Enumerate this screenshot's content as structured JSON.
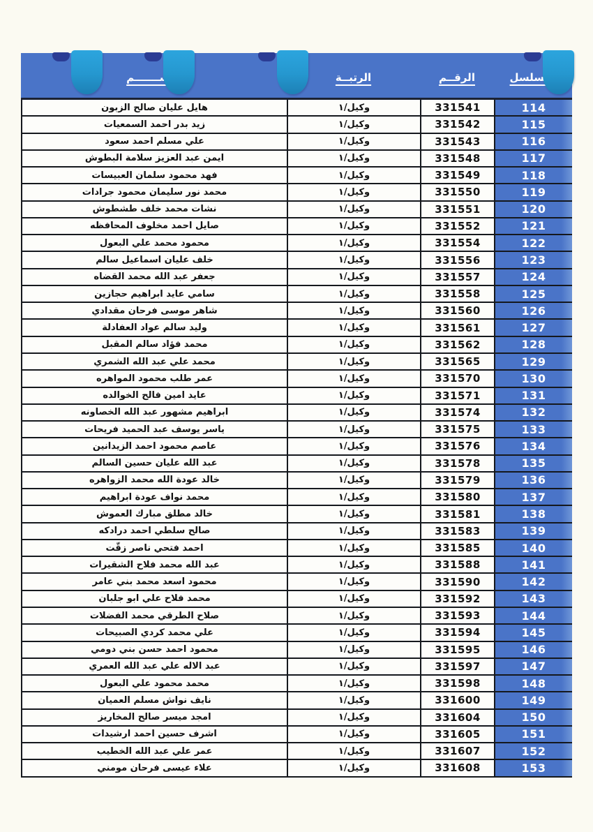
{
  "document": {
    "type": "roster-table",
    "header": {
      "serial_label": "التسلسل",
      "number_label": "الرقــم",
      "rank_label": "الرتبــة",
      "name_label": "الاســـــــم"
    },
    "rows": [
      {
        "serial": "114",
        "number": "331541",
        "rank": "وكيل/١",
        "name": "هايل عليان صالح الزبون"
      },
      {
        "serial": "115",
        "number": "331542",
        "rank": "وكيل/١",
        "name": "زيد بدر احمد السمعيات"
      },
      {
        "serial": "116",
        "number": "331543",
        "rank": "وكيل/١",
        "name": "علي مسلم احمد سعود"
      },
      {
        "serial": "117",
        "number": "331548",
        "rank": "وكيل/١",
        "name": "ايمن عبد العزيز سلامة البطوش"
      },
      {
        "serial": "118",
        "number": "331549",
        "rank": "وكيل/١",
        "name": "فهد محمود سلمان العبيسات"
      },
      {
        "serial": "119",
        "number": "331550",
        "rank": "وكيل/١",
        "name": "محمد نور سليمان محمود جرادات"
      },
      {
        "serial": "120",
        "number": "331551",
        "rank": "وكيل/١",
        "name": "نشات محمد خلف طشطوش"
      },
      {
        "serial": "121",
        "number": "331552",
        "rank": "وكيل/١",
        "name": "صايل احمد مخلوف المحافظه"
      },
      {
        "serial": "122",
        "number": "331554",
        "rank": "وكيل/١",
        "name": "محمود محمد علي البعول"
      },
      {
        "serial": "123",
        "number": "331556",
        "rank": "وكيل/١",
        "name": "خلف عليان اسماعيل سالم"
      },
      {
        "serial": "124",
        "number": "331557",
        "rank": "وكيل/١",
        "name": "جعفر عبد الله محمد القضاه"
      },
      {
        "serial": "125",
        "number": "331558",
        "rank": "وكيل/١",
        "name": "سامي عايد ابراهيم حجازين"
      },
      {
        "serial": "126",
        "number": "331560",
        "rank": "وكيل/١",
        "name": "شاهر موسى فرحان مقدادي"
      },
      {
        "serial": "127",
        "number": "331561",
        "rank": "وكيل/١",
        "name": "وليد سالم عواد العفادلة"
      },
      {
        "serial": "128",
        "number": "331562",
        "rank": "وكيل/١",
        "name": "محمد فؤاد سالم المقبل"
      },
      {
        "serial": "129",
        "number": "331565",
        "rank": "وكيل/١",
        "name": "محمد علي عبد الله الشمري"
      },
      {
        "serial": "130",
        "number": "331570",
        "rank": "وكيل/١",
        "name": "عمر طلب محمود المواهره"
      },
      {
        "serial": "131",
        "number": "331571",
        "rank": "وكيل/١",
        "name": "عايد امين فالح الخوالده"
      },
      {
        "serial": "132",
        "number": "331574",
        "rank": "وكيل/١",
        "name": "ابراهيم مشهور عبد الله الخصاونه"
      },
      {
        "serial": "133",
        "number": "331575",
        "rank": "وكيل/١",
        "name": "ياسر يوسف عبد الحميد فريحات"
      },
      {
        "serial": "134",
        "number": "331576",
        "rank": "وكيل/١",
        "name": "عاصم محمود احمد الزيدانين"
      },
      {
        "serial": "135",
        "number": "331578",
        "rank": "وكيل/١",
        "name": "عبد الله عليان حسين السالم"
      },
      {
        "serial": "136",
        "number": "331579",
        "rank": "وكيل/١",
        "name": "خالد عودة الله محمد الزواهره"
      },
      {
        "serial": "137",
        "number": "331580",
        "rank": "وكيل/١",
        "name": "محمد نواف عودة ابراهيم"
      },
      {
        "serial": "138",
        "number": "331581",
        "rank": "وكيل/١",
        "name": "خالد مطلق مبارك العموش"
      },
      {
        "serial": "139",
        "number": "331583",
        "rank": "وكيل/١",
        "name": "صالح سلطي احمد درادكه"
      },
      {
        "serial": "140",
        "number": "331585",
        "rank": "وكيل/١",
        "name": "احمد فتحي ناصر زقّت"
      },
      {
        "serial": "141",
        "number": "331588",
        "rank": "وكيل/١",
        "name": "عبد الله محمد فلاح الشقيرات"
      },
      {
        "serial": "142",
        "number": "331590",
        "rank": "وكيل/١",
        "name": "محمود اسعد محمد بني عامر"
      },
      {
        "serial": "143",
        "number": "331592",
        "rank": "وكيل/١",
        "name": "محمد فلاح علي ابو جلبان"
      },
      {
        "serial": "144",
        "number": "331593",
        "rank": "وكيل/١",
        "name": "صلاح الطرقي محمد الفضلات"
      },
      {
        "serial": "145",
        "number": "331594",
        "rank": "وكيل/١",
        "name": "علي محمد كردي الصبيحات"
      },
      {
        "serial": "146",
        "number": "331595",
        "rank": "وكيل/١",
        "name": "محمود احمد حسن بني دومي"
      },
      {
        "serial": "147",
        "number": "331597",
        "rank": "وكيل/١",
        "name": "عبد الاله علي عبد الله العمري"
      },
      {
        "serial": "148",
        "number": "331598",
        "rank": "وكيل/١",
        "name": "محمد محمود علي البعول"
      },
      {
        "serial": "149",
        "number": "331600",
        "rank": "وكيل/١",
        "name": "نايف نواش مسلم العميان"
      },
      {
        "serial": "150",
        "number": "331604",
        "rank": "وكيل/١",
        "name": "امجد ميسر صالح المخاريز"
      },
      {
        "serial": "151",
        "number": "331605",
        "rank": "وكيل/١",
        "name": "اشرف حسين احمد ارشيدات"
      },
      {
        "serial": "152",
        "number": "331607",
        "rank": "وكيل/١",
        "name": "عمر علي عبد الله الخطيب"
      },
      {
        "serial": "153",
        "number": "331608",
        "rank": "وكيل/١",
        "name": "علاء عيسى فرحان مومني"
      }
    ],
    "colors": {
      "header_blue": "#4a74c8",
      "serial_cell_blue": "#4a74c8",
      "tab_blue_top": "#2ca5de",
      "tab_blue_bottom": "#1d80b5",
      "tab_notch_navy": "#2b3c94",
      "grid_line": "#15181d",
      "page_background": "#fbfaf2"
    }
  }
}
